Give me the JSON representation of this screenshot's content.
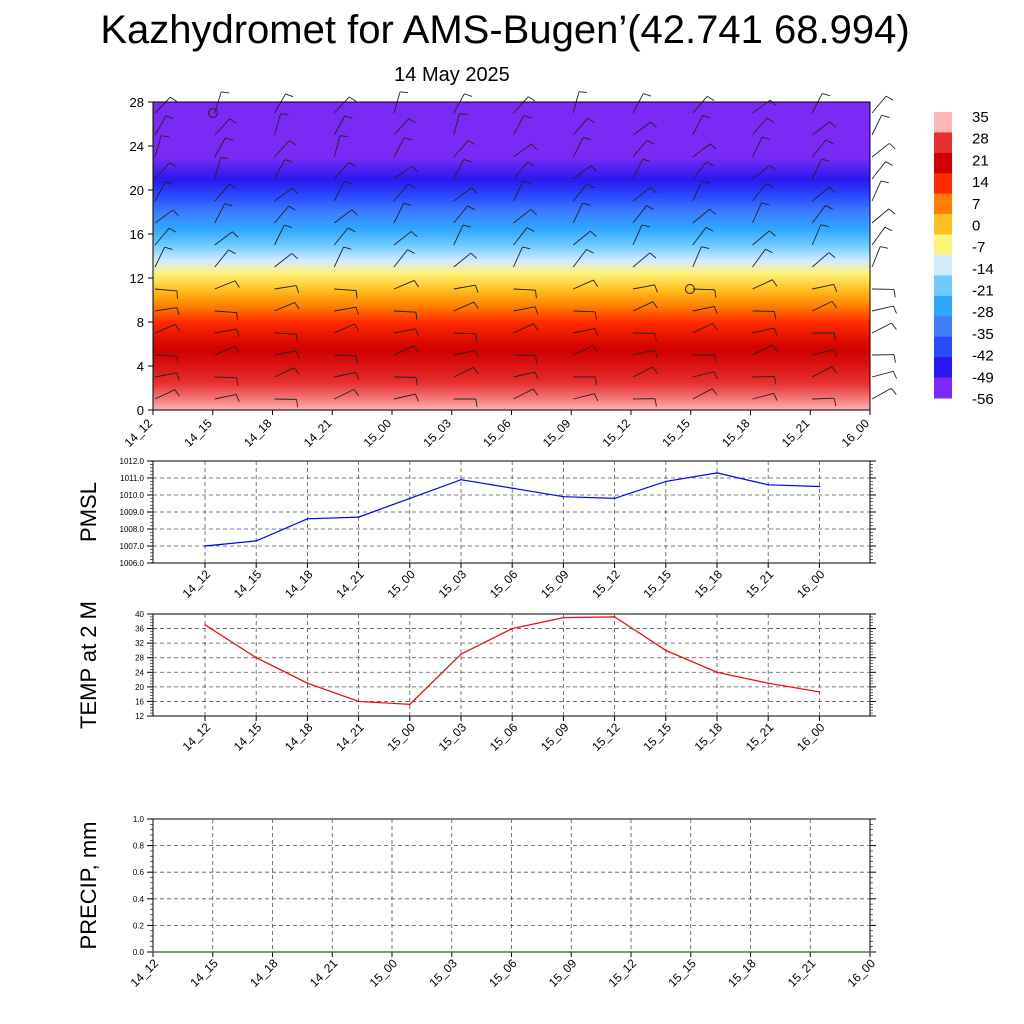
{
  "title": "Kazhydromet for AMS-Bugen’(42.741 68.994)",
  "subtitle": "14 May 2025",
  "colors": {
    "pmsl_line": "#0000ff",
    "temp_line": "#ff0000",
    "precip_line": "#1a6b1a",
    "grid": "#555555"
  },
  "chart_data": [
    {
      "type": "heatmap",
      "x_ticks": [
        "14_12",
        "14_15",
        "14_18",
        "14_21",
        "15_00",
        "15_03",
        "15_06",
        "15_09",
        "15_12",
        "15_15",
        "15_18",
        "15_21",
        "16_00"
      ],
      "ylim": [
        0,
        28
      ],
      "y_ticks": [
        0,
        4,
        8,
        12,
        16,
        20,
        24,
        28
      ],
      "colorbar": {
        "labels": [
          "35",
          "28",
          "21",
          "14",
          "7",
          "0",
          "-7",
          "-14",
          "-21",
          "-28",
          "-35",
          "-42",
          "-49",
          "-56"
        ],
        "colors": [
          "#ffb6b6",
          "#e83030",
          "#d20000",
          "#ff2a00",
          "#ff8000",
          "#ffc020",
          "#fff47a",
          "#d2ecff",
          "#6ecbff",
          "#2fa7ff",
          "#3d7eff",
          "#2a4aff",
          "#2a18f0",
          "#7a2af4"
        ]
      },
      "temperature_by_height": [
        {
          "h": 0,
          "v": 35
        },
        {
          "h": 1,
          "v": 32
        },
        {
          "h": 2.5,
          "v": 28
        },
        {
          "h": 4,
          "v": 24
        },
        {
          "h": 6,
          "v": 20
        },
        {
          "h": 8,
          "v": 14
        },
        {
          "h": 9.5,
          "v": 7
        },
        {
          "h": 11,
          "v": 0
        },
        {
          "h": 12.5,
          "v": -7
        },
        {
          "h": 13.6,
          "v": -14
        },
        {
          "h": 15,
          "v": -21
        },
        {
          "h": 16.5,
          "v": -28
        },
        {
          "h": 18,
          "v": -35
        },
        {
          "h": 19.5,
          "v": -42
        },
        {
          "h": 21,
          "v": -49
        },
        {
          "h": 23,
          "v": -56
        },
        {
          "h": 25,
          "v": -60
        },
        {
          "h": 28,
          "v": -62
        }
      ]
    },
    {
      "type": "line",
      "ylabel": "PMSL",
      "ylim": [
        1006.0,
        1012.0
      ],
      "y_ticks": [
        "1006.0",
        "1007.0",
        "1008.0",
        "1009.0",
        "1010.0",
        "1011.0",
        "1012.0"
      ],
      "categories": [
        "14_12",
        "14_15",
        "14_18",
        "14_21",
        "15_00",
        "15_03",
        "15_06",
        "15_09",
        "15_12",
        "15_15",
        "15_18",
        "15_21",
        "16_00"
      ],
      "values": [
        1007.0,
        1007.3,
        1008.6,
        1008.7,
        1009.8,
        1010.9,
        1010.4,
        1009.9,
        1009.8,
        1010.8,
        1011.3,
        1010.6,
        1010.5
      ]
    },
    {
      "type": "line",
      "ylabel": "TEMP at 2 M",
      "ylim": [
        12,
        40
      ],
      "y_ticks": [
        "12",
        "16",
        "20",
        "24",
        "28",
        "32",
        "36",
        "40"
      ],
      "categories": [
        "14_12",
        "14_15",
        "14_18",
        "14_21",
        "15_00",
        "15_03",
        "15_06",
        "15_09",
        "15_12",
        "15_15",
        "15_18",
        "15_21",
        "16_00"
      ],
      "values": [
        37.0,
        28.0,
        21.0,
        16.0,
        15.2,
        29.0,
        36.0,
        39.0,
        39.2,
        30.0,
        24.0,
        21.0,
        18.6
      ]
    },
    {
      "type": "line",
      "ylabel": "PRECIP, mm",
      "ylim": [
        0.0,
        1.0
      ],
      "y_ticks": [
        "0.0",
        "0.2",
        "0.4",
        "0.6",
        "0.8",
        "1.0"
      ],
      "categories": [
        "14_12",
        "14_15",
        "14_18",
        "14_21",
        "15_00",
        "15_03",
        "15_06",
        "15_09",
        "15_12",
        "15_15",
        "15_18",
        "15_21",
        "16_00"
      ],
      "values": [
        0,
        0,
        0,
        0,
        0,
        0,
        0,
        0,
        0,
        0,
        0,
        0,
        0
      ]
    }
  ]
}
